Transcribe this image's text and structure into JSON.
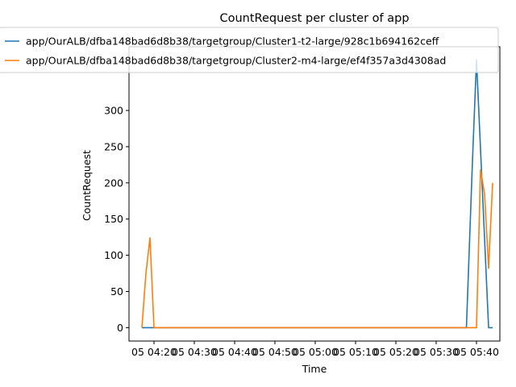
{
  "chart_data": {
    "type": "line",
    "title": "CountRequest per cluster of app",
    "xlabel": "Time",
    "ylabel": "CountRequest",
    "x_tick_labels": [
      "05 04:20",
      "05 04:30",
      "05 04:40",
      "05 04:50",
      "05 05:00",
      "05 05:10",
      "05 05:20",
      "05 05:30",
      "05 05:40"
    ],
    "x_tick_minutes": [
      260,
      270,
      280,
      290,
      300,
      310,
      320,
      330,
      340
    ],
    "y_ticks": [
      0,
      50,
      100,
      150,
      200,
      250,
      300
    ],
    "xlim": [
      253.8,
      345.8
    ],
    "ylim": [
      -18.5,
      388
    ],
    "legend": "top",
    "grid": false,
    "series": [
      {
        "name": "app/OurALB/dfba148bad6d8b38/targetgroup/Cluster1-t2-large/928c1b694162ceff",
        "color": "#1f77b4",
        "x": [
          257,
          258,
          259,
          260,
          337.5,
          339,
          340,
          343,
          344
        ],
        "values": [
          0,
          0,
          0,
          0,
          0,
          230,
          370,
          0,
          0
        ]
      },
      {
        "name": "app/OurALB/dfba148bad6d8b38/targetgroup/Cluster2-m4-large/ef4f357a3d4308ad",
        "color": "#ff7f0e",
        "x": [
          257,
          258,
          259,
          260,
          337,
          339,
          340,
          341,
          342,
          343,
          344
        ],
        "values": [
          0,
          75,
          124,
          0,
          0,
          0,
          0,
          218,
          185,
          82,
          200
        ]
      }
    ]
  }
}
